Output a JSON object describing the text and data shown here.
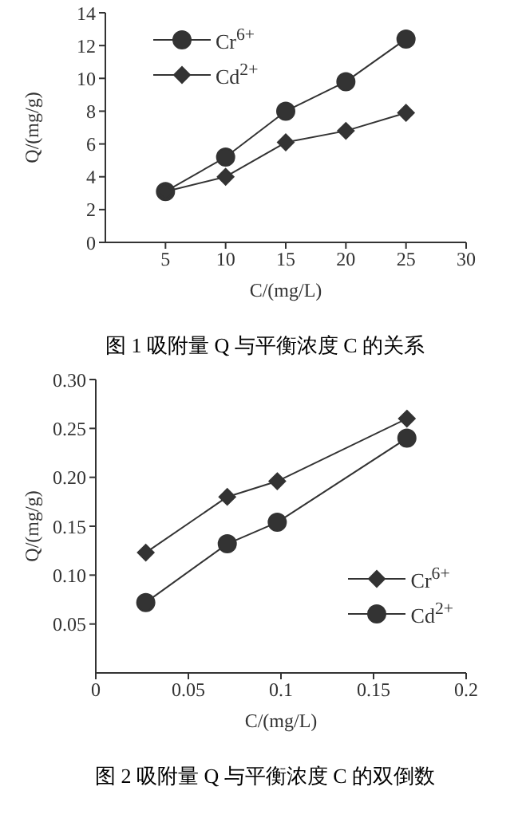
{
  "chart_data": [
    {
      "type": "line",
      "title": "图 1  吸附量 Q 与平衡浓度 C 的关系",
      "xlabel": "C/(mg/L)",
      "ylabel": "Q/(mg/g)",
      "x": [
        5,
        10,
        15,
        20,
        25
      ],
      "xlim": [
        0,
        30
      ],
      "xticks": [
        5,
        10,
        15,
        20,
        25,
        30
      ],
      "ylim": [
        0,
        14
      ],
      "yticks": [
        0,
        2,
        4,
        6,
        8,
        10,
        12,
        14
      ],
      "grid": false,
      "legend": "top left",
      "line_style": "solid",
      "series": [
        {
          "name": "Cr$^{6+}$",
          "color": "#333333",
          "marker": "circle",
          "values": [
            3.1,
            5.2,
            8.0,
            9.8,
            12.4
          ]
        },
        {
          "name": "Cd$^{2+}$",
          "color": "#333333",
          "marker": "diamond",
          "values": [
            3.1,
            4.0,
            6.1,
            6.8,
            7.9
          ]
        }
      ]
    },
    {
      "type": "line",
      "title": "图 2  吸附量 Q 与平衡浓度 C 的双倒数",
      "xlabel": "C/(mg/L)",
      "ylabel": "Q/(mg/g)",
      "xlim": [
        0,
        0.2
      ],
      "xticks": [
        0,
        0.05,
        0.1,
        0.15,
        0.2
      ],
      "ylim": [
        0,
        0.3
      ],
      "yticks": [
        {
          "value": 0.05,
          "label": "0.05"
        },
        {
          "value": 0.1,
          "label": "0.10"
        },
        {
          "value": 0.15,
          "label": "0.15"
        },
        {
          "value": 0.2,
          "label": "0.20"
        },
        {
          "value": 0.25,
          "label": "0.25"
        },
        {
          "value": 0.3,
          "label": "0.30"
        }
      ],
      "grid": false,
      "legend": "right",
      "line_style": "solid",
      "series": [
        {
          "name": "Cr$^{6+}$",
          "color": "#333333",
          "marker": "diamond",
          "x": [
            0.027,
            0.071,
            0.098,
            0.168
          ],
          "values": [
            0.123,
            0.18,
            0.196,
            0.26
          ]
        },
        {
          "name": "Cd$^{2+}$",
          "color": "#333333",
          "marker": "circle",
          "x": [
            0.027,
            0.071,
            0.098,
            0.168
          ],
          "values": [
            0.072,
            0.132,
            0.154,
            0.24
          ]
        }
      ]
    }
  ]
}
